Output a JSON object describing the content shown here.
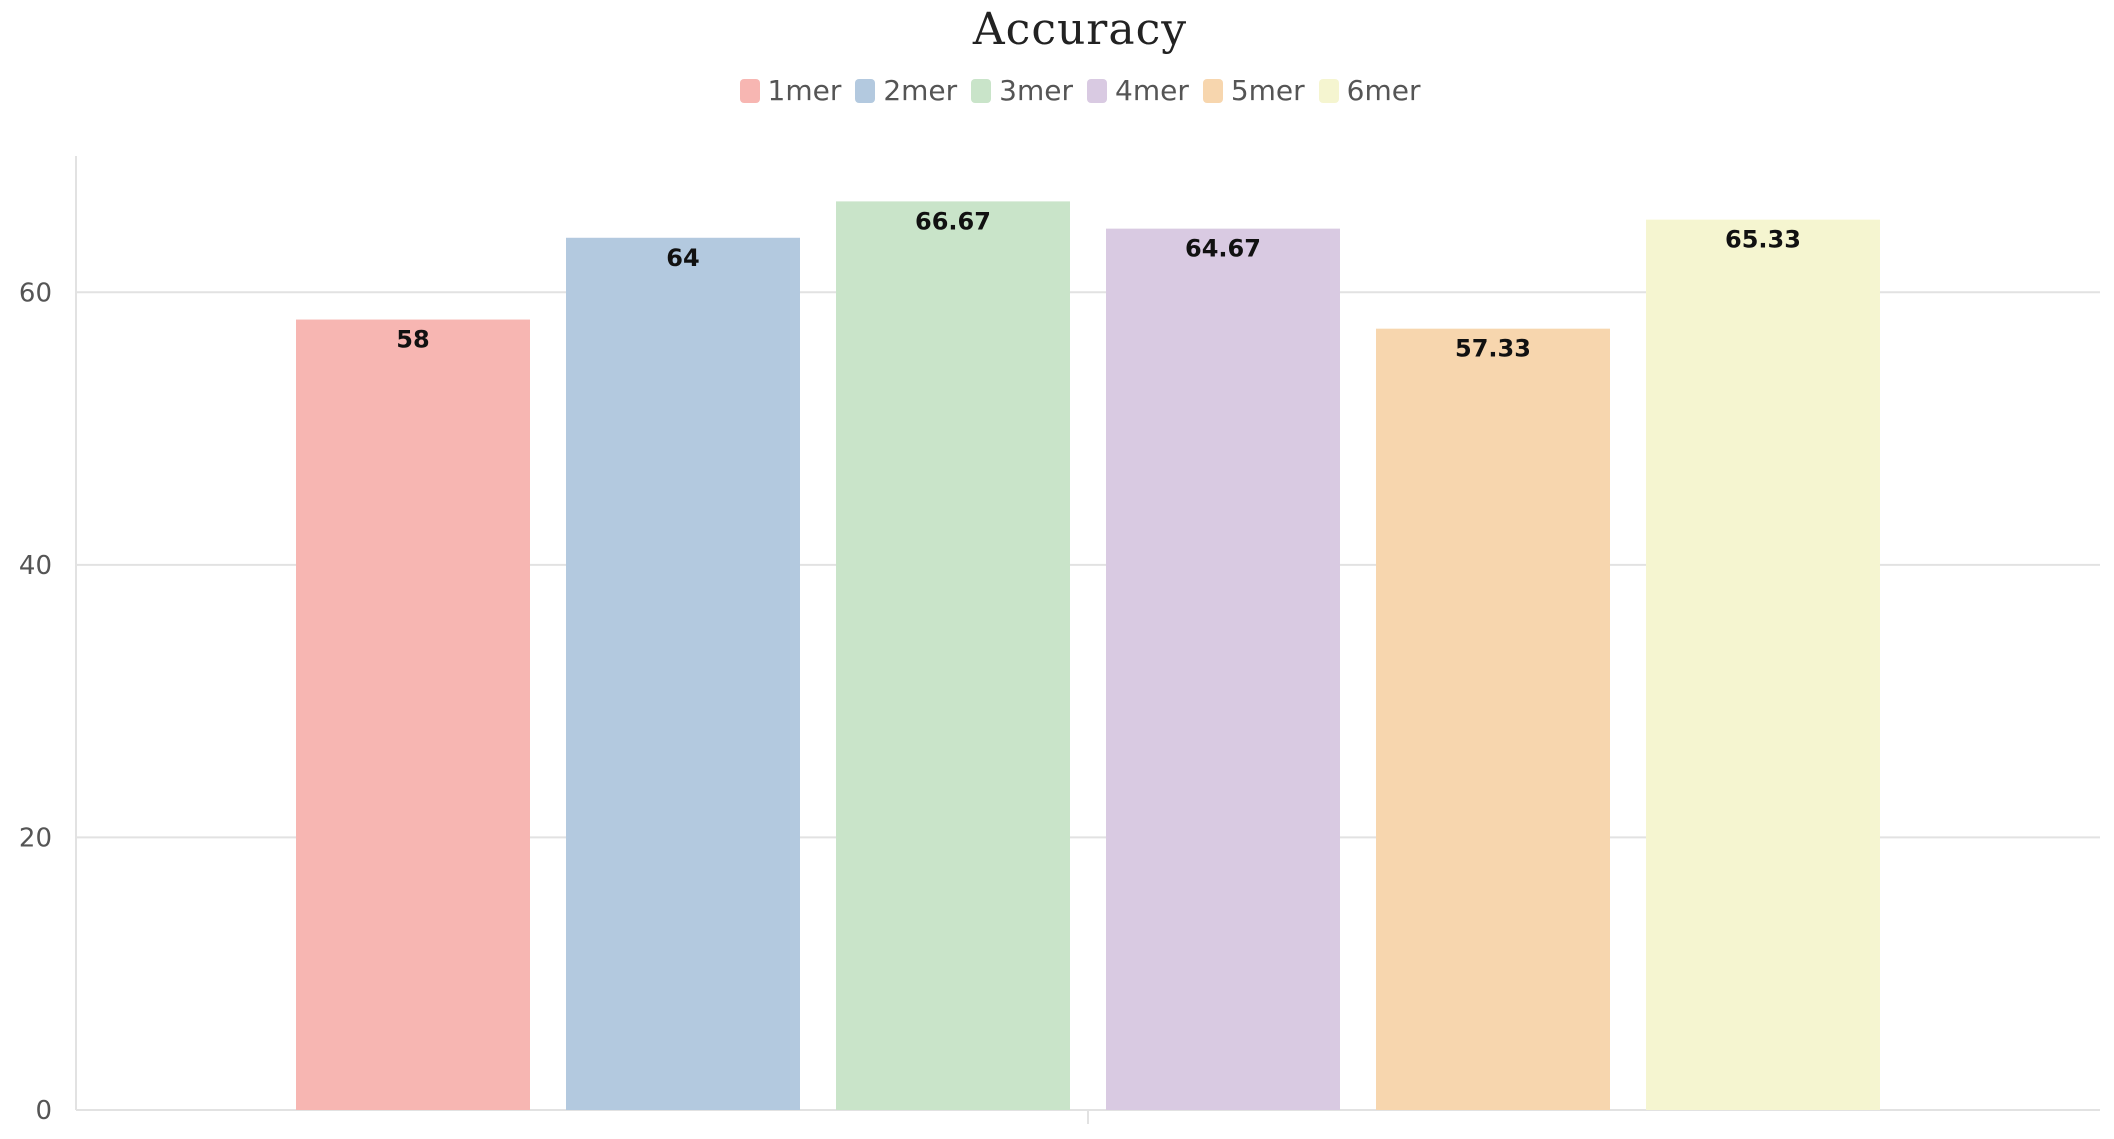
{
  "chart_data": {
    "type": "bar",
    "title": "Accuracy",
    "xlabel": "",
    "ylabel": "",
    "ylim": [
      0,
      70
    ],
    "yticks": [
      0,
      20,
      40,
      60
    ],
    "grid": true,
    "legend_position": "top-center",
    "series": [
      {
        "name": "1mer",
        "value": 58,
        "label": "58",
        "color": "#f7b6b2"
      },
      {
        "name": "2mer",
        "value": 64,
        "label": "64",
        "color": "#b3c9df"
      },
      {
        "name": "3mer",
        "value": 66.67,
        "label": "66.67",
        "color": "#c9e4c9"
      },
      {
        "name": "4mer",
        "value": 64.67,
        "label": "64.67",
        "color": "#d9cae2"
      },
      {
        "name": "5mer",
        "value": 57.33,
        "label": "57.33",
        "color": "#f7d6ae"
      },
      {
        "name": "6mer",
        "value": 65.33,
        "label": "65.33",
        "color": "#f5f5d0"
      }
    ]
  }
}
